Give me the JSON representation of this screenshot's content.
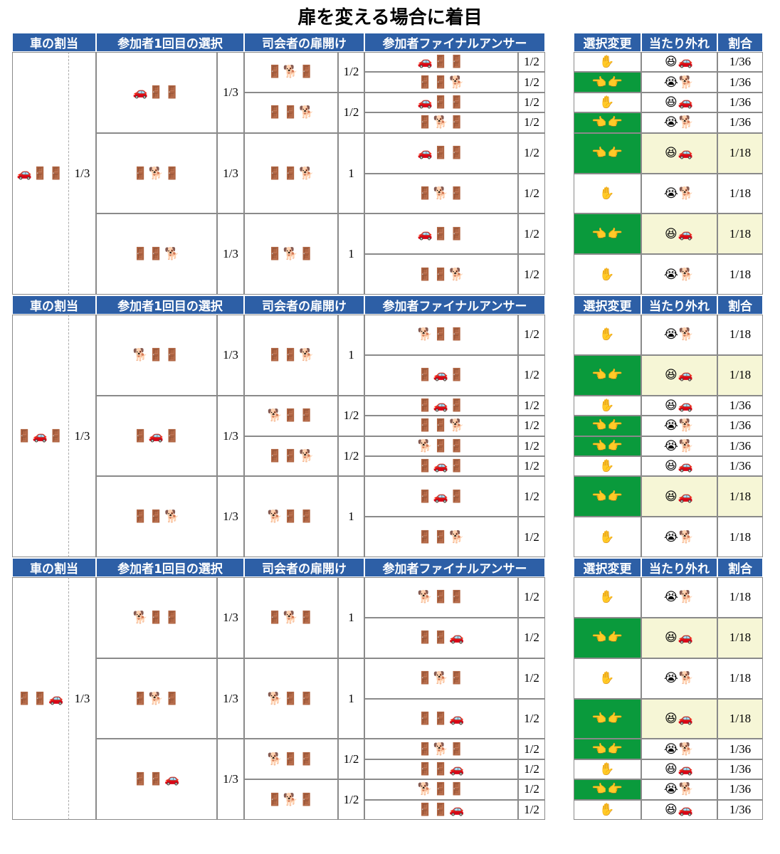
{
  "title": "扉を変える場合に着目",
  "left_headers": [
    "車の割当",
    "参加者1回目の選択",
    "司会者の扉開け",
    "参加者ファイナルアンサー"
  ],
  "right_headers": [
    "選択変更",
    "当たり外れ",
    "割合"
  ],
  "colors": {
    "header": "#2d5fa6",
    "switch": "#0a9a3c",
    "win": "#f6f6d6"
  },
  "blocks": [
    {
      "car": "🚗🚪🚪",
      "car_prob": "1/3",
      "firsts": [
        {
          "choice": "🚗🚪🚪",
          "prob": "1/3",
          "hosts": [
            {
              "open": "🚪🐕🚪",
              "prob": "1/2",
              "finals": [
                {
                  "answer": "🚗🚪🚪",
                  "prob": "1/2",
                  "change": "✋",
                  "result": "😆🚗",
                  "ratio": "1/36",
                  "switched": false,
                  "win": true
                },
                {
                  "answer": "🚪🚪🐕",
                  "prob": "1/2",
                  "change": "👈👉",
                  "result": "😭🐕",
                  "ratio": "1/36",
                  "switched": true,
                  "win": false
                }
              ]
            },
            {
              "open": "🚪🚪🐕",
              "prob": "1/2",
              "finals": [
                {
                  "answer": "🚗🚪🚪",
                  "prob": "1/2",
                  "change": "✋",
                  "result": "😆🚗",
                  "ratio": "1/36",
                  "switched": false,
                  "win": true
                },
                {
                  "answer": "🚪🐕🚪",
                  "prob": "1/2",
                  "change": "👈👉",
                  "result": "😭🐕",
                  "ratio": "1/36",
                  "switched": true,
                  "win": false
                }
              ]
            }
          ]
        },
        {
          "choice": "🚪🐕🚪",
          "prob": "1/3",
          "hosts": [
            {
              "open": "🚪🚪🐕",
              "prob": "1",
              "finals": [
                {
                  "answer": "🚗🚪🚪",
                  "prob": "1/2",
                  "change": "👈👉",
                  "result": "😆🚗",
                  "ratio": "1/18",
                  "switched": true,
                  "win": true
                },
                {
                  "answer": "🚪🐕🚪",
                  "prob": "1/2",
                  "change": "✋",
                  "result": "😭🐕",
                  "ratio": "1/18",
                  "switched": false,
                  "win": false
                }
              ]
            }
          ]
        },
        {
          "choice": "🚪🚪🐕",
          "prob": "1/3",
          "hosts": [
            {
              "open": "🚪🐕🚪",
              "prob": "1",
              "finals": [
                {
                  "answer": "🚗🚪🚪",
                  "prob": "1/2",
                  "change": "👈👉",
                  "result": "😆🚗",
                  "ratio": "1/18",
                  "switched": true,
                  "win": true
                },
                {
                  "answer": "🚪🚪🐕",
                  "prob": "1/2",
                  "change": "✋",
                  "result": "😭🐕",
                  "ratio": "1/18",
                  "switched": false,
                  "win": false
                }
              ]
            }
          ]
        }
      ]
    },
    {
      "car": "🚪🚗🚪",
      "car_prob": "1/3",
      "firsts": [
        {
          "choice": "🐕🚪🚪",
          "prob": "1/3",
          "hosts": [
            {
              "open": "🚪🚪🐕",
              "prob": "1",
              "finals": [
                {
                  "answer": "🐕🚪🚪",
                  "prob": "1/2",
                  "change": "✋",
                  "result": "😭🐕",
                  "ratio": "1/18",
                  "switched": false,
                  "win": false
                },
                {
                  "answer": "🚪🚗🚪",
                  "prob": "1/2",
                  "change": "👈👉",
                  "result": "😆🚗",
                  "ratio": "1/18",
                  "switched": true,
                  "win": true
                }
              ]
            }
          ]
        },
        {
          "choice": "🚪🚗🚪",
          "prob": "1/3",
          "hosts": [
            {
              "open": "🐕🚪🚪",
              "prob": "1/2",
              "finals": [
                {
                  "answer": "🚪🚗🚪",
                  "prob": "1/2",
                  "change": "✋",
                  "result": "😆🚗",
                  "ratio": "1/36",
                  "switched": false,
                  "win": true
                },
                {
                  "answer": "🚪🚪🐕",
                  "prob": "1/2",
                  "change": "👈👉",
                  "result": "😭🐕",
                  "ratio": "1/36",
                  "switched": true,
                  "win": false
                }
              ]
            },
            {
              "open": "🚪🚪🐕",
              "prob": "1/2",
              "finals": [
                {
                  "answer": "🐕🚪🚪",
                  "prob": "1/2",
                  "change": "👈👉",
                  "result": "😭🐕",
                  "ratio": "1/36",
                  "switched": true,
                  "win": false
                },
                {
                  "answer": "🚪🚗🚪",
                  "prob": "1/2",
                  "change": "✋",
                  "result": "😆🚗",
                  "ratio": "1/36",
                  "switched": false,
                  "win": true
                }
              ]
            }
          ]
        },
        {
          "choice": "🚪🚪🐕",
          "prob": "1/3",
          "hosts": [
            {
              "open": "🐕🚪🚪",
              "prob": "1",
              "finals": [
                {
                  "answer": "🚪🚗🚪",
                  "prob": "1/2",
                  "change": "👈👉",
                  "result": "😆🚗",
                  "ratio": "1/18",
                  "switched": true,
                  "win": true
                },
                {
                  "answer": "🚪🚪🐕",
                  "prob": "1/2",
                  "change": "✋",
                  "result": "😭🐕",
                  "ratio": "1/18",
                  "switched": false,
                  "win": false
                }
              ]
            }
          ]
        }
      ]
    },
    {
      "car": "🚪🚪🚗",
      "car_prob": "1/3",
      "firsts": [
        {
          "choice": "🐕🚪🚪",
          "prob": "1/3",
          "hosts": [
            {
              "open": "🚪🐕🚪",
              "prob": "1",
              "finals": [
                {
                  "answer": "🐕🚪🚪",
                  "prob": "1/2",
                  "change": "✋",
                  "result": "😭🐕",
                  "ratio": "1/18",
                  "switched": false,
                  "win": false
                },
                {
                  "answer": "🚪🚪🚗",
                  "prob": "1/2",
                  "change": "👈👉",
                  "result": "😆🚗",
                  "ratio": "1/18",
                  "switched": true,
                  "win": true
                }
              ]
            }
          ]
        },
        {
          "choice": "🚪🐕🚪",
          "prob": "1/3",
          "hosts": [
            {
              "open": "🐕🚪🚪",
              "prob": "1",
              "finals": [
                {
                  "answer": "🚪🐕🚪",
                  "prob": "1/2",
                  "change": "✋",
                  "result": "😭🐕",
                  "ratio": "1/18",
                  "switched": false,
                  "win": false
                },
                {
                  "answer": "🚪🚪🚗",
                  "prob": "1/2",
                  "change": "👈👉",
                  "result": "😆🚗",
                  "ratio": "1/18",
                  "switched": true,
                  "win": true
                }
              ]
            }
          ]
        },
        {
          "choice": "🚪🚪🚗",
          "prob": "1/3",
          "hosts": [
            {
              "open": "🐕🚪🚪",
              "prob": "1/2",
              "finals": [
                {
                  "answer": "🚪🐕🚪",
                  "prob": "1/2",
                  "change": "👈👉",
                  "result": "😭🐕",
                  "ratio": "1/36",
                  "switched": true,
                  "win": false
                },
                {
                  "answer": "🚪🚪🚗",
                  "prob": "1/2",
                  "change": "✋",
                  "result": "😆🚗",
                  "ratio": "1/36",
                  "switched": false,
                  "win": true
                }
              ]
            },
            {
              "open": "🚪🐕🚪",
              "prob": "1/2",
              "finals": [
                {
                  "answer": "🐕🚪🚪",
                  "prob": "1/2",
                  "change": "👈👉",
                  "result": "😭🐕",
                  "ratio": "1/36",
                  "switched": true,
                  "win": false
                },
                {
                  "answer": "🚪🚪🚗",
                  "prob": "1/2",
                  "change": "✋",
                  "result": "😆🚗",
                  "ratio": "1/36",
                  "switched": false,
                  "win": true
                }
              ]
            }
          ]
        }
      ]
    }
  ]
}
